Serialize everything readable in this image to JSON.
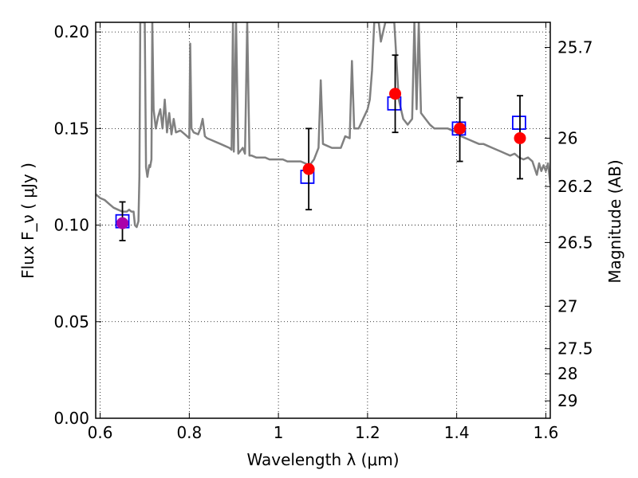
{
  "chart_data": {
    "type": "scatter",
    "title": "",
    "xlabel": "Wavelength  λ (μm)",
    "ylabel": "Flux  F_ν  ( μJy )",
    "ylabel_right": "Magnitude (AB)",
    "xlim": [
      0.59,
      1.61
    ],
    "ylim": [
      0.0,
      0.205
    ],
    "grid": true,
    "x_ticks": [
      {
        "value": 0.6,
        "label": "0.6"
      },
      {
        "value": 0.8,
        "label": "0.8"
      },
      {
        "value": 1.0,
        "label": "1"
      },
      {
        "value": 1.2,
        "label": "1.2"
      },
      {
        "value": 1.4,
        "label": "1.4"
      },
      {
        "value": 1.6,
        "label": "1.6"
      }
    ],
    "y_ticks": [
      {
        "value": 0.0,
        "label": "0.00"
      },
      {
        "value": 0.05,
        "label": "0.05"
      },
      {
        "value": 0.1,
        "label": "0.10"
      },
      {
        "value": 0.15,
        "label": "0.15"
      },
      {
        "value": 0.2,
        "label": "0.20"
      }
    ],
    "right_ticks": [
      {
        "flux": 0.192,
        "label": "25.7"
      },
      {
        "flux": 0.145,
        "label": "26"
      },
      {
        "flux": 0.12,
        "label": "26.2"
      },
      {
        "flux": 0.091,
        "label": "26.5"
      },
      {
        "flux": 0.058,
        "label": "27"
      },
      {
        "flux": 0.036,
        "label": "27.5"
      },
      {
        "flux": 0.023,
        "label": "28"
      },
      {
        "flux": 0.009,
        "label": "29"
      }
    ],
    "series": [
      {
        "kind": "line",
        "color": "#808080",
        "points": [
          [
            0.59,
            0.116
          ],
          [
            0.6,
            0.114
          ],
          [
            0.61,
            0.113
          ],
          [
            0.62,
            0.111
          ],
          [
            0.63,
            0.109
          ],
          [
            0.64,
            0.108
          ],
          [
            0.65,
            0.107
          ],
          [
            0.66,
            0.107
          ],
          [
            0.665,
            0.108
          ],
          [
            0.67,
            0.107
          ],
          [
            0.675,
            0.107
          ],
          [
            0.678,
            0.1
          ],
          [
            0.682,
            0.099
          ],
          [
            0.686,
            0.102
          ],
          [
            0.688,
            0.125
          ],
          [
            0.69,
            0.205
          ],
          [
            0.7,
            0.205
          ],
          [
            0.703,
            0.13
          ],
          [
            0.706,
            0.125
          ],
          [
            0.71,
            0.131
          ],
          [
            0.712,
            0.13
          ],
          [
            0.715,
            0.134
          ],
          [
            0.717,
            0.205
          ],
          [
            0.72,
            0.16
          ],
          [
            0.725,
            0.15
          ],
          [
            0.73,
            0.156
          ],
          [
            0.735,
            0.16
          ],
          [
            0.74,
            0.15
          ],
          [
            0.745,
            0.165
          ],
          [
            0.75,
            0.148
          ],
          [
            0.755,
            0.158
          ],
          [
            0.76,
            0.147
          ],
          [
            0.765,
            0.155
          ],
          [
            0.77,
            0.148
          ],
          [
            0.78,
            0.149
          ],
          [
            0.79,
            0.147
          ],
          [
            0.8,
            0.145
          ],
          [
            0.802,
            0.194
          ],
          [
            0.805,
            0.15
          ],
          [
            0.81,
            0.148
          ],
          [
            0.82,
            0.147
          ],
          [
            0.825,
            0.15
          ],
          [
            0.83,
            0.155
          ],
          [
            0.835,
            0.146
          ],
          [
            0.84,
            0.145
          ],
          [
            0.85,
            0.144
          ],
          [
            0.86,
            0.143
          ],
          [
            0.87,
            0.142
          ],
          [
            0.88,
            0.141
          ],
          [
            0.89,
            0.14
          ],
          [
            0.895,
            0.139
          ],
          [
            0.898,
            0.205
          ],
          [
            0.9,
            0.138
          ],
          [
            0.905,
            0.205
          ],
          [
            0.91,
            0.137
          ],
          [
            0.92,
            0.14
          ],
          [
            0.925,
            0.137
          ],
          [
            0.93,
            0.205
          ],
          [
            0.935,
            0.136
          ],
          [
            0.94,
            0.136
          ],
          [
            0.95,
            0.135
          ],
          [
            0.96,
            0.135
          ],
          [
            0.97,
            0.135
          ],
          [
            0.98,
            0.134
          ],
          [
            0.99,
            0.134
          ],
          [
            1.0,
            0.134
          ],
          [
            1.01,
            0.134
          ],
          [
            1.02,
            0.133
          ],
          [
            1.03,
            0.133
          ],
          [
            1.04,
            0.133
          ],
          [
            1.05,
            0.133
          ],
          [
            1.06,
            0.132
          ],
          [
            1.07,
            0.131
          ],
          [
            1.08,
            0.134
          ],
          [
            1.09,
            0.14
          ],
          [
            1.095,
            0.175
          ],
          [
            1.1,
            0.142
          ],
          [
            1.11,
            0.141
          ],
          [
            1.12,
            0.14
          ],
          [
            1.13,
            0.14
          ],
          [
            1.14,
            0.14
          ],
          [
            1.15,
            0.146
          ],
          [
            1.16,
            0.145
          ],
          [
            1.165,
            0.185
          ],
          [
            1.17,
            0.15
          ],
          [
            1.18,
            0.15
          ],
          [
            1.19,
            0.155
          ],
          [
            1.2,
            0.16
          ],
          [
            1.205,
            0.165
          ],
          [
            1.21,
            0.18
          ],
          [
            1.215,
            0.205
          ],
          [
            1.225,
            0.205
          ],
          [
            1.23,
            0.195
          ],
          [
            1.24,
            0.205
          ],
          [
            1.26,
            0.205
          ],
          [
            1.27,
            0.165
          ],
          [
            1.28,
            0.155
          ],
          [
            1.29,
            0.152
          ],
          [
            1.3,
            0.155
          ],
          [
            1.305,
            0.205
          ],
          [
            1.31,
            0.16
          ],
          [
            1.315,
            0.205
          ],
          [
            1.32,
            0.158
          ],
          [
            1.33,
            0.155
          ],
          [
            1.34,
            0.152
          ],
          [
            1.35,
            0.15
          ],
          [
            1.36,
            0.15
          ],
          [
            1.37,
            0.15
          ],
          [
            1.38,
            0.15
          ],
          [
            1.39,
            0.149
          ],
          [
            1.4,
            0.148
          ],
          [
            1.41,
            0.146
          ],
          [
            1.42,
            0.145
          ],
          [
            1.43,
            0.144
          ],
          [
            1.44,
            0.143
          ],
          [
            1.45,
            0.142
          ],
          [
            1.46,
            0.142
          ],
          [
            1.47,
            0.141
          ],
          [
            1.48,
            0.14
          ],
          [
            1.49,
            0.139
          ],
          [
            1.5,
            0.138
          ],
          [
            1.51,
            0.137
          ],
          [
            1.52,
            0.136
          ],
          [
            1.53,
            0.137
          ],
          [
            1.54,
            0.135
          ],
          [
            1.55,
            0.134
          ],
          [
            1.56,
            0.135
          ],
          [
            1.57,
            0.133
          ],
          [
            1.58,
            0.126
          ],
          [
            1.585,
            0.132
          ],
          [
            1.59,
            0.128
          ],
          [
            1.595,
            0.131
          ],
          [
            1.6,
            0.128
          ],
          [
            1.605,
            0.132
          ],
          [
            1.61,
            0.121
          ]
        ]
      },
      {
        "kind": "open-square",
        "color": "#0000ff",
        "points": [
          {
            "x": 0.65,
            "y": 0.102
          },
          {
            "x": 1.065,
            "y": 0.125
          },
          {
            "x": 1.26,
            "y": 0.163
          },
          {
            "x": 1.405,
            "y": 0.15
          },
          {
            "x": 1.54,
            "y": 0.153
          }
        ]
      },
      {
        "kind": "filled-circle",
        "color": "#ff0000",
        "points": [
          {
            "x": 0.65,
            "y": 0.101,
            "err_low": 0.092,
            "err_high": 0.112,
            "color": "#aa00aa"
          },
          {
            "x": 1.068,
            "y": 0.129,
            "err_low": 0.108,
            "err_high": 0.15
          },
          {
            "x": 1.262,
            "y": 0.168,
            "err_low": 0.148,
            "err_high": 0.188
          },
          {
            "x": 1.407,
            "y": 0.15,
            "err_low": 0.133,
            "err_high": 0.166
          },
          {
            "x": 1.542,
            "y": 0.145,
            "err_low": 0.124,
            "err_high": 0.167
          }
        ]
      }
    ]
  }
}
